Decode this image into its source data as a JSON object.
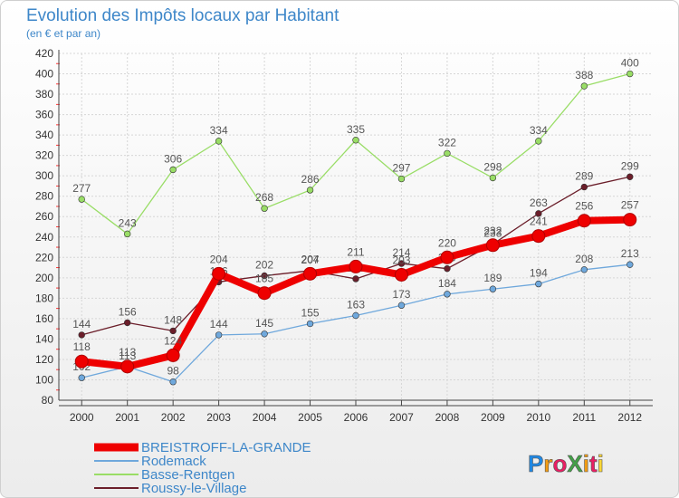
{
  "chart_data": {
    "type": "line",
    "title": "Evolution des Impôts locaux par Habitant",
    "subtitle": "(en € et par an)",
    "xlabel": "",
    "ylabel": "",
    "categories": [
      "2000",
      "2001",
      "2002",
      "2003",
      "2004",
      "2005",
      "2006",
      "2007",
      "2008",
      "2009",
      "2010",
      "2011",
      "2012"
    ],
    "ylim": [
      80,
      420
    ],
    "yticks": [
      80,
      100,
      120,
      140,
      160,
      180,
      200,
      220,
      240,
      260,
      280,
      300,
      320,
      340,
      360,
      380,
      400,
      420
    ],
    "grid": true,
    "legend_position": "bottom-left",
    "series": [
      {
        "name": "BREISTROFF-LA-GRANDE",
        "color": "#ee0000",
        "values": [
          118,
          113,
          124,
          204,
          185,
          204,
          211,
          203,
          220,
          232,
          241,
          256,
          257
        ]
      },
      {
        "name": "Rodemack",
        "color": "#6fa8dc",
        "values": [
          102,
          113,
          98,
          144,
          145,
          155,
          163,
          173,
          184,
          189,
          194,
          208,
          213
        ]
      },
      {
        "name": "Basse-Rentgen",
        "color": "#99dd66",
        "values": [
          277,
          243,
          306,
          334,
          268,
          286,
          335,
          297,
          322,
          298,
          334,
          388,
          400
        ]
      },
      {
        "name": "Roussy-le-Village",
        "color": "#6b1e2a",
        "values": [
          144,
          156,
          148,
          196,
          202,
          207,
          199,
          214,
          209,
          233,
          263,
          289,
          299
        ]
      }
    ]
  },
  "logo": {
    "text": "ProXiti",
    "letter_colors": [
      "#1e88e5",
      "#f39c12",
      "#e91e63",
      "#43a047",
      "#f39c12",
      "#e91e63",
      "#fdd835"
    ]
  }
}
